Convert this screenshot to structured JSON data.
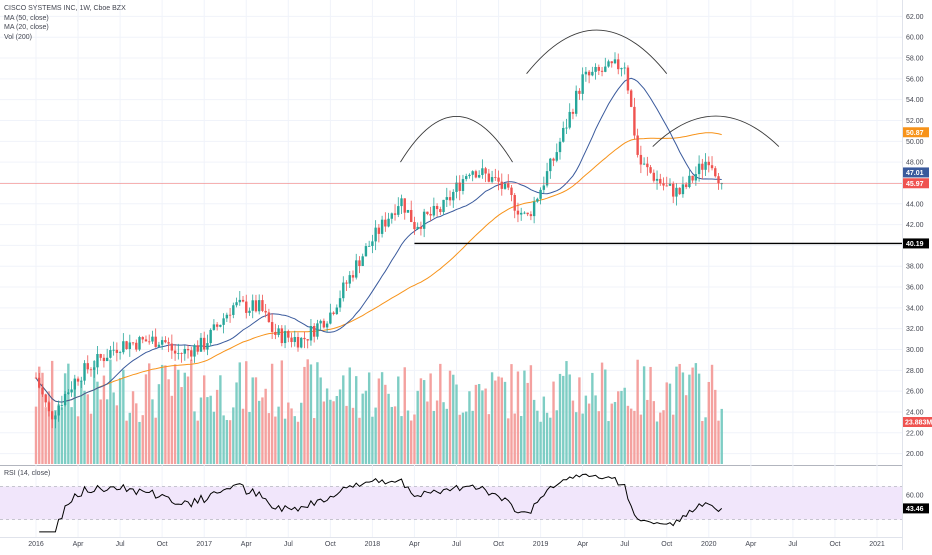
{
  "legend": {
    "title": "CISCO SYSTEMS INC, 1W, Cboe BZX",
    "ma50": "MA (50, close)",
    "ma20": "MA (20, close)",
    "vol": "Vol (200)"
  },
  "rsi_label": "RSI (14, close)",
  "colors": {
    "up": "#26a69a",
    "down": "#ef5350",
    "vol_up": "#7ecdc4",
    "vol_down": "#f4a19f",
    "ma50": "#f7931a",
    "ma20": "#3a5a9c",
    "rsi_line": "#000000",
    "rsi_band": "#f1e6fb"
  },
  "chart_data": {
    "type": "candlestick",
    "symbol": "CISCO SYSTEMS INC",
    "interval": "1W",
    "exchange": "Cboe BZX",
    "x_labels": [
      "2016",
      "Apr",
      "Jul",
      "Oct",
      "2017",
      "Apr",
      "Jul",
      "Oct",
      "2018",
      "Apr",
      "Jul",
      "Oct",
      "2019",
      "Apr",
      "Jul",
      "Oct",
      "2020",
      "Apr",
      "Jul",
      "Oct",
      "2021"
    ],
    "price_axis_ticks": [
      "62.00",
      "60.00",
      "58.00",
      "56.00",
      "54.00",
      "52.00",
      "50.00",
      "48.00",
      "46.00",
      "44.00",
      "42.00",
      "40.00",
      "38.00",
      "36.00",
      "34.00",
      "32.00",
      "30.00",
      "28.00",
      "26.00",
      "24.00",
      "22.00",
      "20.00"
    ],
    "price_axis_values": [
      62,
      60,
      58,
      56,
      54,
      52,
      50,
      48,
      46,
      44,
      42,
      40,
      38,
      36,
      34,
      32,
      30,
      28,
      26,
      24,
      22,
      20
    ],
    "y_range": [
      19,
      63
    ],
    "price_tags": [
      {
        "label": "50.87",
        "value": 50.87,
        "color": "#f7931a"
      },
      {
        "label": "47.01",
        "value": 47.01,
        "color": "#3a5a9c"
      },
      {
        "label": "45.97",
        "value": 45.97,
        "color": "#ef5350"
      },
      {
        "label": "40.19",
        "value": 40.19,
        "color": "#000000"
      }
    ],
    "volume_tag": {
      "label": "23.883M",
      "color": "#ef5350"
    },
    "last_price": 45.97,
    "support_level": 40.19,
    "support_start": "2018-04",
    "key_closes": [
      {
        "date": "2016-01",
        "close": 27.3
      },
      {
        "date": "2016-02",
        "close": 23.5
      },
      {
        "date": "2016-04",
        "close": 27.5
      },
      {
        "date": "2016-07",
        "close": 30.5
      },
      {
        "date": "2016-10",
        "close": 31.0
      },
      {
        "date": "2016-11",
        "close": 29.5
      },
      {
        "date": "2017-01",
        "close": 30.5
      },
      {
        "date": "2017-03",
        "close": 34.2
      },
      {
        "date": "2017-05",
        "close": 34.0
      },
      {
        "date": "2017-06",
        "close": 31.5
      },
      {
        "date": "2017-08",
        "close": 30.9
      },
      {
        "date": "2017-10",
        "close": 33.5
      },
      {
        "date": "2017-12",
        "close": 38.5
      },
      {
        "date": "2018-03",
        "close": 44.5
      },
      {
        "date": "2018-04",
        "close": 42.0
      },
      {
        "date": "2018-06",
        "close": 43.5
      },
      {
        "date": "2018-08",
        "close": 47.5
      },
      {
        "date": "2018-10",
        "close": 46.0
      },
      {
        "date": "2018-12",
        "close": 42.5
      },
      {
        "date": "2019-02",
        "close": 48.5
      },
      {
        "date": "2019-04",
        "close": 56.0
      },
      {
        "date": "2019-07",
        "close": 57.5
      },
      {
        "date": "2019-08",
        "close": 48.0
      },
      {
        "date": "2019-10",
        "close": 45.5
      },
      {
        "date": "2019-11",
        "close": 45.0
      },
      {
        "date": "2020-01",
        "close": 48.5
      },
      {
        "date": "2020-02",
        "close": 45.97
      }
    ],
    "rsi": {
      "period": 14,
      "levels": [
        70,
        30
      ],
      "axis_ticks": [
        "60.00"
      ],
      "last_label": "43.46",
      "last_value": 43.46
    },
    "annotations": [
      {
        "type": "arc",
        "description": "left shoulder",
        "from": "2018-03",
        "to": "2018-11"
      },
      {
        "type": "arc",
        "description": "head",
        "from": "2018-12",
        "to": "2019-10"
      },
      {
        "type": "arc",
        "description": "right shoulder",
        "from": "2019-09",
        "to": "2020-06"
      },
      {
        "type": "horizontal_line",
        "description": "neckline",
        "value": 40.19
      }
    ]
  }
}
